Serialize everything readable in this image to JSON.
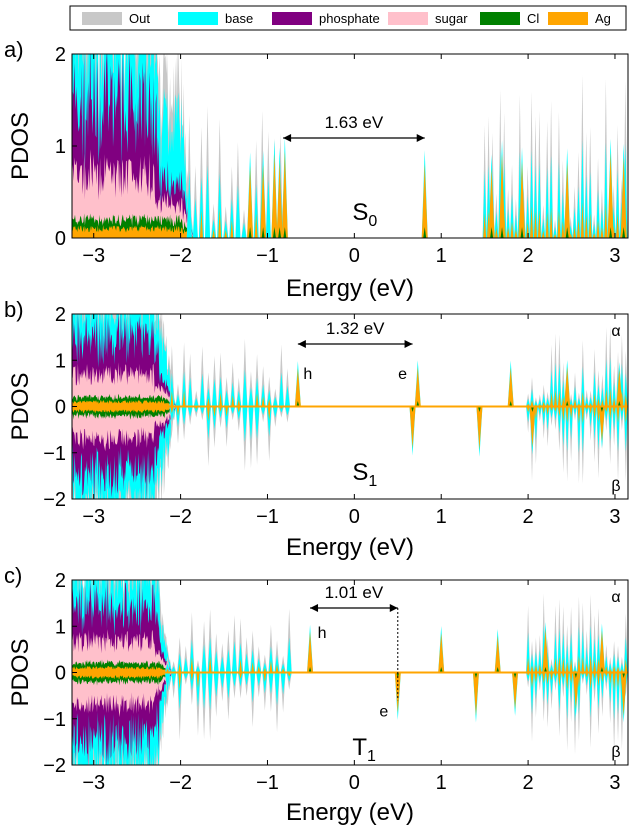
{
  "legend": [
    {
      "name": "Out",
      "color": "#c8c8c8"
    },
    {
      "name": "base",
      "color": "#00ffff"
    },
    {
      "name": "phosphate",
      "color": "#800080"
    },
    {
      "name": "sugar",
      "color": "#ffc0cb"
    },
    {
      "name": "Cl",
      "color": "#008000"
    },
    {
      "name": "Ag",
      "color": "#ffa500"
    }
  ],
  "chart_data": [
    {
      "type": "area",
      "panel_label": "a)",
      "state_label": "S",
      "state_sub": "0",
      "xlabel": "Energy (eV)",
      "ylabel": "PDOS",
      "xlim": [
        -3.25,
        3.15
      ],
      "ylim": [
        0,
        2
      ],
      "xticks": [
        "−3",
        "−2",
        "−1",
        "0",
        "1",
        "2",
        "3"
      ],
      "yticks": [
        "0",
        "1",
        "2"
      ],
      "gap": {
        "text": "1.63 eV",
        "from": -0.82,
        "to": 0.81
      },
      "spikes": [
        -1.2,
        -1.05,
        -0.92,
        -0.86,
        -0.8,
        0.81,
        1.58,
        1.7,
        1.93,
        2.45,
        2.95,
        3.1
      ],
      "valence_edge": -2.0,
      "spin_polarized": false
    },
    {
      "type": "area",
      "panel_label": "b)",
      "state_label": "S",
      "state_sub": "1",
      "spin_up": "α",
      "spin_down": "β",
      "xlabel": "Energy (eV)",
      "ylabel": "PDOS",
      "xlim": [
        -3.25,
        3.15
      ],
      "ylim": [
        -2,
        2
      ],
      "xticks": [
        "−3",
        "−2",
        "−1",
        "0",
        "1",
        "2",
        "3"
      ],
      "yticks": [
        "−2",
        "−1",
        "0",
        "1",
        "2"
      ],
      "gap": {
        "text": "1.32 eV",
        "from": -0.65,
        "to": 0.67
      },
      "hole_label": "h",
      "electron_label": "e",
      "spikes": [
        -0.65,
        0.67,
        0.73,
        1.44,
        1.8,
        2.05,
        2.45,
        2.85,
        3.05
      ],
      "valence_edge": -2.2,
      "spin_polarized": true
    },
    {
      "type": "area",
      "panel_label": "c)",
      "state_label": "T",
      "state_sub": "1",
      "spin_up": "α",
      "spin_down": "β",
      "xlabel": "Energy (eV)",
      "ylabel": "PDOS",
      "xlim": [
        -3.25,
        3.15
      ],
      "ylim": [
        -2,
        2
      ],
      "xticks": [
        "−3",
        "−2",
        "−1",
        "0",
        "1",
        "2",
        "3"
      ],
      "yticks": [
        "−2",
        "−1",
        "0",
        "1",
        "2"
      ],
      "gap": {
        "text": "1.01 eV",
        "from": -0.51,
        "to": 0.5
      },
      "hole_label": "h",
      "electron_label": "e",
      "spikes": [
        -0.51,
        0.5,
        1.0,
        1.4,
        1.65,
        1.85,
        2.2,
        2.55,
        2.85,
        3.1
      ],
      "valence_edge": -2.25,
      "spin_polarized": true
    }
  ]
}
